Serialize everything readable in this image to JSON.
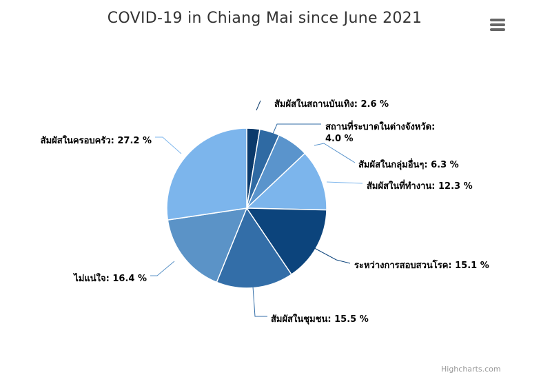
{
  "chart_data": {
    "type": "pie",
    "title": "COVID-19 in Chiang Mai since June 2021",
    "slices": [
      {
        "label": "สัมผัสในสถานบันเทิง",
        "value": 2.6,
        "color": "#0b3a6b",
        "display": "2.6 %"
      },
      {
        "label": "สถานที่ระบาดในต่างจังหวัด",
        "value": 4.0,
        "color": "#2f6aa3",
        "display": "4.0 %"
      },
      {
        "label": "สัมผัสในกลุ่มอื่นๆ",
        "value": 6.3,
        "color": "#5a94cc",
        "display": "6.3 %"
      },
      {
        "label": "สัมผัสในที่ทำงาน",
        "value": 12.3,
        "color": "#7cb5ec",
        "display": "12.3 %"
      },
      {
        "label": "ระหว่างการสอบสวนโรค",
        "value": 15.1,
        "color": "#0c447c",
        "display": "15.1 %"
      },
      {
        "label": "สัมผัสในชุมชน",
        "value": 15.5,
        "color": "#336ea8",
        "display": "15.5 %"
      },
      {
        "label": "ไม่แน่ใจ",
        "value": 16.4,
        "color": "#5b93c7",
        "display": "16.4 %"
      },
      {
        "label": "สัมผัสในครอบครัว",
        "value": 27.2,
        "color": "#7cb5ec",
        "display": "27.2 %"
      }
    ]
  },
  "credits": "Highcharts.com",
  "menu_icon": "hamburger-menu-icon"
}
